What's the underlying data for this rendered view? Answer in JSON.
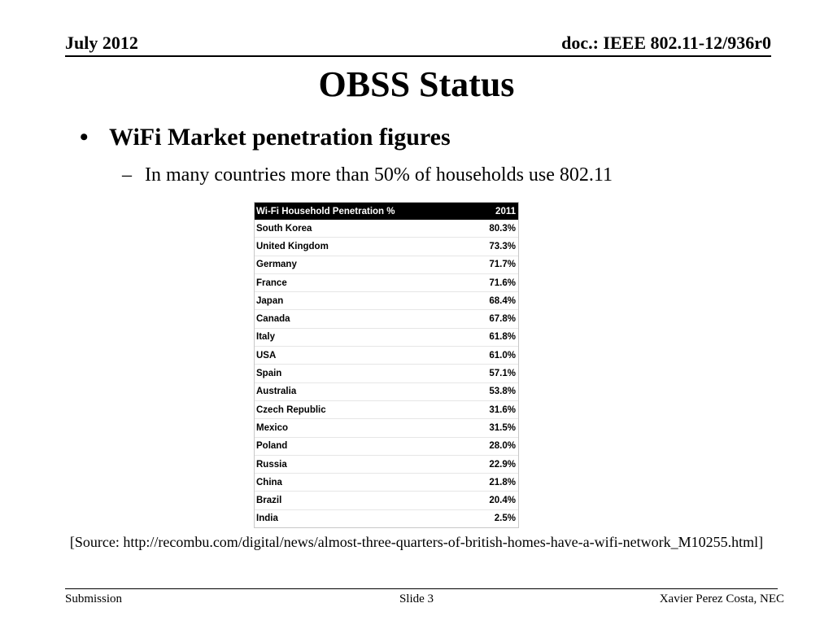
{
  "header": {
    "date": "July 2012",
    "doc": "doc.: IEEE 802.11-12/936r0"
  },
  "slide": {
    "title": "OBSS Status",
    "bullet": "WiFi Market penetration figures",
    "bullet_marker": "•",
    "sub_bullet": "In many countries more than 50% of households use 802.11",
    "sub_marker": "–"
  },
  "table": {
    "header_label": "Wi-Fi Household Penetration %",
    "header_year": "2011",
    "rows": [
      {
        "country": "South Korea",
        "value": "80.3%"
      },
      {
        "country": "United Kingdom",
        "value": "73.3%"
      },
      {
        "country": "Germany",
        "value": "71.7%"
      },
      {
        "country": "France",
        "value": "71.6%"
      },
      {
        "country": "Japan",
        "value": "68.4%"
      },
      {
        "country": "Canada",
        "value": "67.8%"
      },
      {
        "country": "Italy",
        "value": "61.8%"
      },
      {
        "country": "USA",
        "value": "61.0%"
      },
      {
        "country": "Spain",
        "value": "57.1%"
      },
      {
        "country": "Australia",
        "value": "53.8%"
      },
      {
        "country": "Czech Republic",
        "value": "31.6%"
      },
      {
        "country": "Mexico",
        "value": "31.5%"
      },
      {
        "country": "Poland",
        "value": "28.0%"
      },
      {
        "country": "Russia",
        "value": "22.9%"
      },
      {
        "country": "China",
        "value": "21.8%"
      },
      {
        "country": "Brazil",
        "value": "20.4%"
      },
      {
        "country": "India",
        "value": "2.5%"
      }
    ]
  },
  "source": "[Source: http://recombu.com/digital/news/almost-three-quarters-of-british-homes-have-a-wifi-network_M10255.html]",
  "footer": {
    "left": "Submission",
    "center": "Slide 3",
    "right": "Xavier Perez Costa, NEC"
  }
}
